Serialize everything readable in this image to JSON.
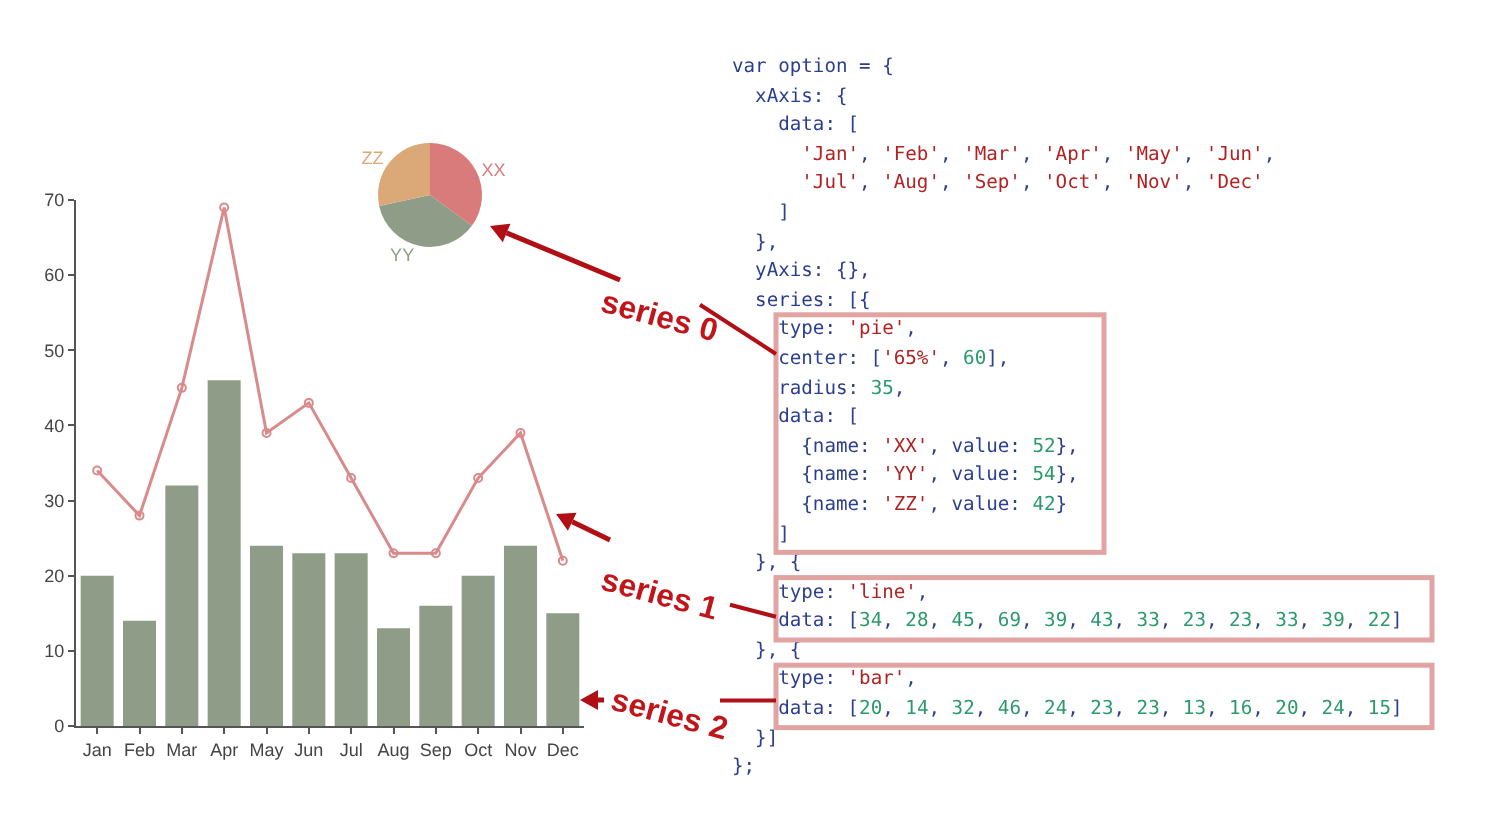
{
  "chart_data": [
    {
      "type": "bar",
      "categories": [
        "Jan",
        "Feb",
        "Mar",
        "Apr",
        "May",
        "Jun",
        "Jul",
        "Aug",
        "Sep",
        "Oct",
        "Nov",
        "Dec"
      ],
      "series": [
        {
          "type": "line",
          "color": "#d98a8a",
          "values": [
            34,
            28,
            45,
            69,
            39,
            43,
            33,
            23,
            23,
            33,
            39,
            22
          ]
        },
        {
          "type": "bar",
          "color": "#8f9c88",
          "values": [
            20,
            14,
            32,
            46,
            24,
            23,
            23,
            13,
            16,
            20,
            24,
            15
          ]
        }
      ],
      "ylim": [
        0,
        70
      ],
      "yticks": [
        0,
        10,
        20,
        30,
        40,
        50,
        60,
        70
      ],
      "marker": "circle",
      "line_style": "solid"
    },
    {
      "type": "pie",
      "categories": [
        "XX",
        "YY",
        "ZZ"
      ],
      "values": [
        35.1,
        36.5,
        28.4
      ],
      "colors": [
        "#d97b7b",
        "#8f9c88",
        "#dba878"
      ]
    },
    {
      "type": "other",
      "annotations": [
        "var option = {",
        "  xAxis: {",
        "    data: [",
        "      'Jan', 'Feb', 'Mar', 'Apr', 'May', 'Jun',",
        "      'Jul', 'Aug', 'Sep', 'Oct', 'Nov', 'Dec'",
        "    ]",
        "  },",
        "  yAxis: {},",
        "  series: [{",
        "    type: 'pie',",
        "    center: ['65%', 60],",
        "    radius: 35,",
        "    data: [",
        "      {name: 'XX', value: 52},",
        "      {name: 'YY', value: 54},",
        "      {name: 'ZZ', value: 42}",
        "    ]",
        "  }, {",
        "    type: 'line',",
        "    data: [34, 28, 45, 69, 39, 43, 33, 23, 23, 33, 39, 22]",
        "  }, {",
        "    type: 'bar',",
        "    data: [20, 14, 32, 46, 24, 23, 23, 13, 16, 20, 24, 15]",
        "  }]",
        "};",
        "series 0",
        "series 1",
        "series 2"
      ]
    }
  ]
}
